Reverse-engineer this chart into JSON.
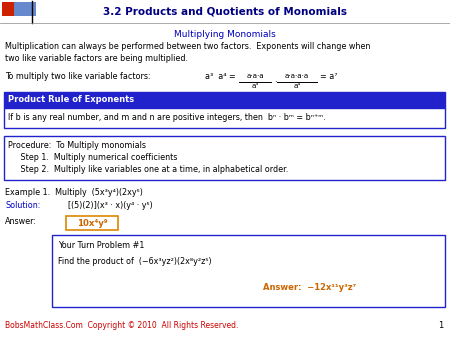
{
  "title": "3.2 Products and Quotients of Monomials",
  "subtitle": "Multiplying Monomials",
  "body_text1": "Multiplication can always be performed between two factors.  Exponents will change when\ntwo like variable factors are being multiplied.",
  "factor_label": "To multiply two like variable factors:",
  "product_rule_header": "Product Rule of Exponents",
  "product_rule_body": "If b is any real number, and m and n are positive integers, then  bⁿ · bᵐ = bⁿ⁺ᵐ.",
  "procedure_header": "Procedure:  To Multiply monomials",
  "procedure_step1": "     Step 1.  Multiply numerical coefficients",
  "procedure_step2": "     Step 2.  Multiply like variables one at a time, in alphabetical order.",
  "example1_a": "Example 1.  Multiply  (5x³y⁴)(2xy⁵)",
  "solution_label": "Solution:",
  "solution_body": "[(5)(2)](x³ · x)(y⁴ · y⁵)",
  "answer_label": "Answer:",
  "answer_body": "10x⁴y⁹",
  "your_turn_title": "Your Turn Problem #1",
  "your_turn_body": "Find the product of  (−6x³yz²)(2x⁸y²z⁵)",
  "your_turn_answer": "Answer:  −12x¹¹y³z⁷",
  "footer": "BobsMathClass.Com  Copyright © 2010  All Rights Reserved.",
  "page_num": "1",
  "bg_color": "#ffffff",
  "title_color": "#000080",
  "subtitle_color": "#0000bb",
  "body_color": "#000000",
  "blue_box_bg": "#2222cc",
  "blue_box_text": "#ffffff",
  "border_color": "#2222cc",
  "footer_color": "#cc0000",
  "answer_text_color": "#cc6600",
  "solution_color": "#0000cc"
}
